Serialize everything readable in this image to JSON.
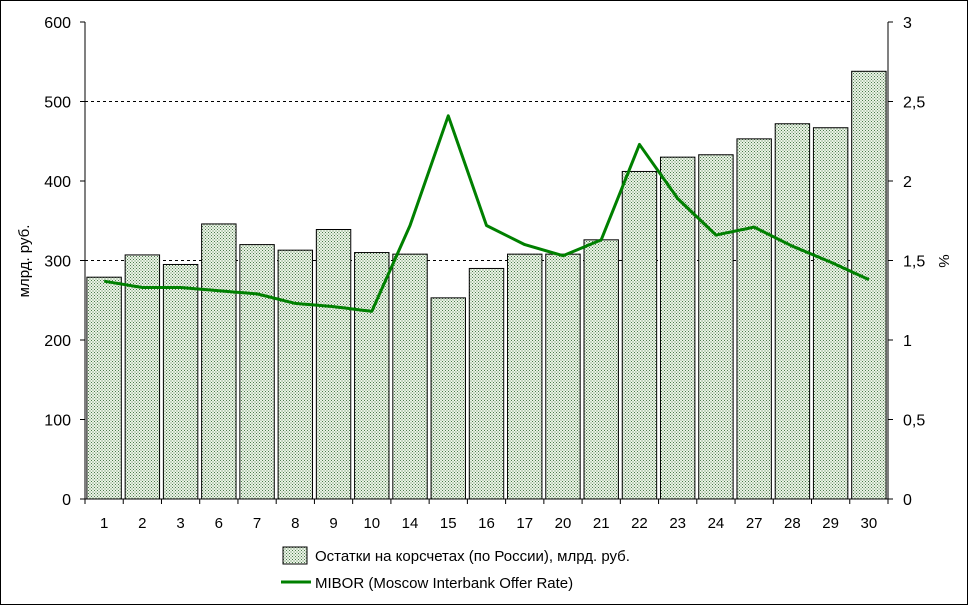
{
  "chart_data": {
    "type": "bar",
    "title": "",
    "categories": [
      "1",
      "2",
      "3",
      "6",
      "7",
      "8",
      "9",
      "10",
      "14",
      "15",
      "16",
      "17",
      "20",
      "21",
      "22",
      "23",
      "24",
      "27",
      "28",
      "29",
      "30"
    ],
    "series": [
      {
        "name": "Остатки на корсчетах (по России), млрд. руб.",
        "type": "bar",
        "axis": "left",
        "values": [
          279,
          307,
          295,
          346,
          320,
          313,
          339,
          310,
          308,
          253,
          290,
          308,
          308,
          326,
          412,
          430,
          433,
          453,
          472,
          467,
          538
        ]
      },
      {
        "name": "MIBOR (Moscow Interbank Offer Rate)",
        "type": "line",
        "axis": "right",
        "color": "#008000",
        "values": [
          1.37,
          1.33,
          1.33,
          1.31,
          1.29,
          1.23,
          1.21,
          1.18,
          1.72,
          2.41,
          1.72,
          1.6,
          1.53,
          1.63,
          2.23,
          1.89,
          1.66,
          1.71,
          1.59,
          1.49,
          1.38
        ]
      }
    ],
    "ylabel": "млрд. руб.",
    "y2label": "%",
    "ylim": [
      0,
      600
    ],
    "y2lim": [
      0,
      3
    ],
    "yticks": [
      "0",
      "100",
      "200",
      "300",
      "400",
      "500",
      "600"
    ],
    "y2ticks": [
      "0",
      "0,5",
      "1",
      "1,5",
      "2",
      "2,5",
      "3"
    ],
    "gridlines": "dashed at 300 and 500",
    "legend_position": "bottom",
    "bar_fill": "light green dotted pattern"
  }
}
